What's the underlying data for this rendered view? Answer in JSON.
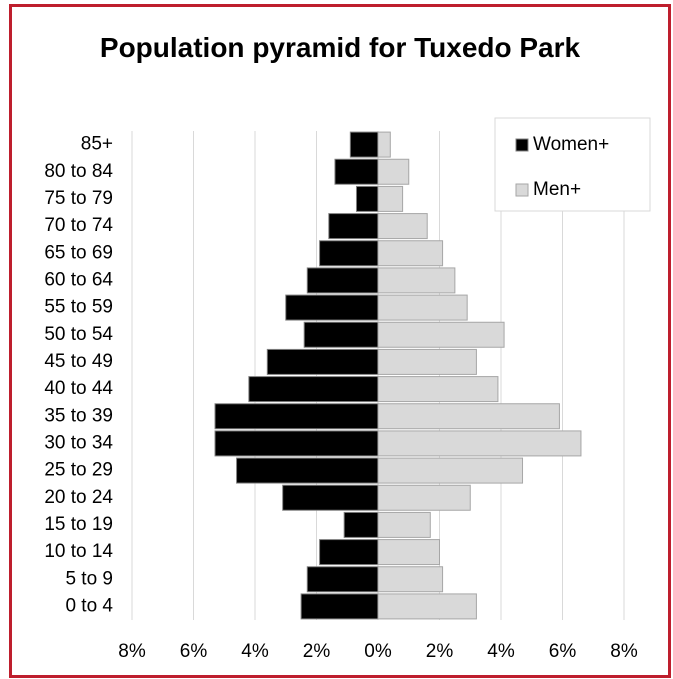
{
  "chart_data": {
    "type": "pyramid",
    "title": "Population pyramid for Tuxedo Park",
    "categories": [
      "85+",
      "80 to 84",
      "75 to 79",
      "70 to 74",
      "65 to 69",
      "60 to 64",
      "55 to 59",
      "50 to 54",
      "45 to 49",
      "40 to 44",
      "35 to 39",
      "30 to 34",
      "25 to 29",
      "20 to 24",
      "15 to 19",
      "10 to 14",
      "5 to 9",
      "0 to 4"
    ],
    "series": [
      {
        "name": "Women+",
        "color": "#000000",
        "values": [
          -0.9,
          -1.4,
          -0.7,
          -1.6,
          -1.9,
          -2.3,
          -3.0,
          -2.4,
          -3.6,
          -4.2,
          -5.3,
          -5.3,
          -4.6,
          -3.1,
          -1.1,
          -1.9,
          -2.3,
          -2.5
        ]
      },
      {
        "name": "Men+",
        "color": "#d9d9d9",
        "values": [
          0.4,
          1.0,
          0.8,
          1.6,
          2.1,
          2.5,
          2.9,
          4.1,
          3.2,
          3.9,
          5.9,
          6.6,
          4.7,
          3.0,
          1.7,
          2.0,
          2.1,
          3.2
        ]
      }
    ],
    "xlim": [
      -8,
      8
    ],
    "xticks": [
      {
        "value": -8,
        "label": "8%"
      },
      {
        "value": -6,
        "label": "6%"
      },
      {
        "value": -4,
        "label": "4%"
      },
      {
        "value": -2,
        "label": "2%"
      },
      {
        "value": 0,
        "label": "0%"
      },
      {
        "value": 2,
        "label": "2%"
      },
      {
        "value": 4,
        "label": "4%"
      },
      {
        "value": 6,
        "label": "6%"
      },
      {
        "value": 8,
        "label": "8%"
      }
    ],
    "grid": true,
    "legend": "upper right"
  }
}
